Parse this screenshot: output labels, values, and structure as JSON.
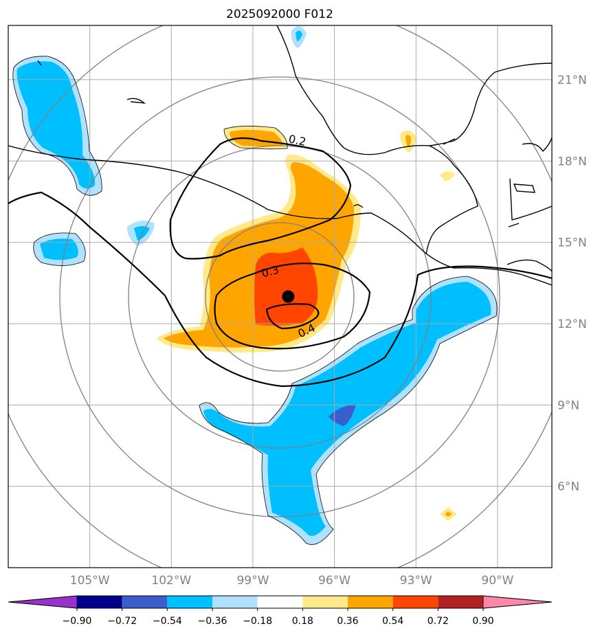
{
  "title": "2025092000 F012",
  "longitudes": [
    {
      "lon": -105,
      "label": "105°W"
    },
    {
      "lon": -102,
      "label": "102°W"
    },
    {
      "lon": -99,
      "label": "99°W"
    },
    {
      "lon": -96,
      "label": "96°W"
    },
    {
      "lon": -93,
      "label": "93°W"
    },
    {
      "lon": -90,
      "label": "90°W"
    }
  ],
  "latitudes": [
    {
      "lat": 21,
      "label": "21°N"
    },
    {
      "lat": 18,
      "label": "18°N"
    },
    {
      "lat": 15,
      "label": "15°N"
    },
    {
      "lat": 12,
      "label": "12°N"
    },
    {
      "lat": 9,
      "label": "9°N"
    },
    {
      "lat": 6,
      "label": "6°N"
    }
  ],
  "map_extent": {
    "lon_min": -108,
    "lon_max": -88,
    "lat_min": 3,
    "lat_max": 23
  },
  "center_marker": {
    "lon": -97.7,
    "lat": 13.0
  },
  "contour_labels": [
    "0.2",
    "0.3",
    "0.4"
  ],
  "colorbar": {
    "ticks": [
      "−0.90",
      "−0.72",
      "−0.54",
      "−0.36",
      "−0.18",
      "0.18",
      "0.36",
      "0.54",
      "0.72",
      "0.90"
    ],
    "colors": [
      "#9932cc",
      "#00008b",
      "#3a5fcd",
      "#00bfff",
      "#b0e2ff",
      "#ffffff",
      "#ffe98a",
      "#ffa500",
      "#ff4500",
      "#b22222",
      "#ff88aa"
    ]
  },
  "colors": {
    "grid": "#a9a9a9",
    "rings": "#808080",
    "coast": "#000000"
  }
}
